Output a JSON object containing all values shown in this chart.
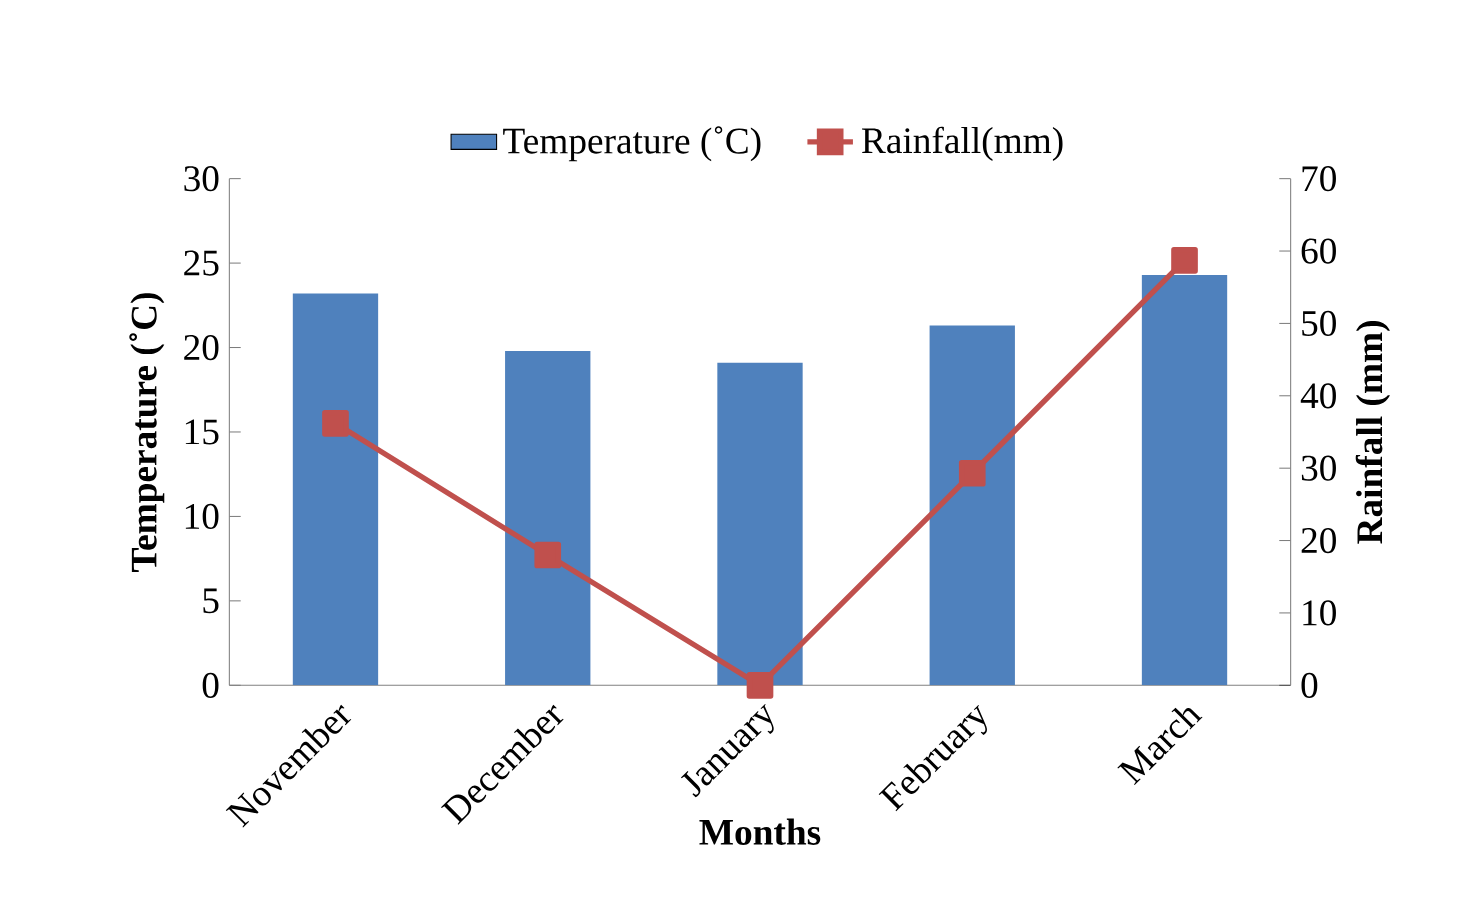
{
  "chart_data": {
    "type": "bar",
    "xlabel": "Months",
    "ylabel": "Temperature (˚C)",
    "y2label": "Rainfall (mm)",
    "categories": [
      "November",
      "December",
      "January",
      "February",
      "March"
    ],
    "series": [
      {
        "name": "Temperature (˚C)",
        "color": "#4f81bd",
        "values": [
          23.2,
          19.8,
          19.1,
          21.3,
          24.3
        ]
      },
      {
        "name": "Rainfall(mm)",
        "type": "line",
        "axis": "y2",
        "color": "#c0504d",
        "marker": "square",
        "values": [
          36.2,
          18,
          0,
          29.3,
          58.7
        ]
      }
    ],
    "ylim": [
      0,
      30
    ],
    "yticks": [
      0,
      5,
      10,
      15,
      20,
      25,
      30
    ],
    "y2lim": [
      0,
      70
    ],
    "y2ticks": [
      0,
      10,
      20,
      30,
      40,
      50,
      60,
      70
    ],
    "legend": "top"
  }
}
